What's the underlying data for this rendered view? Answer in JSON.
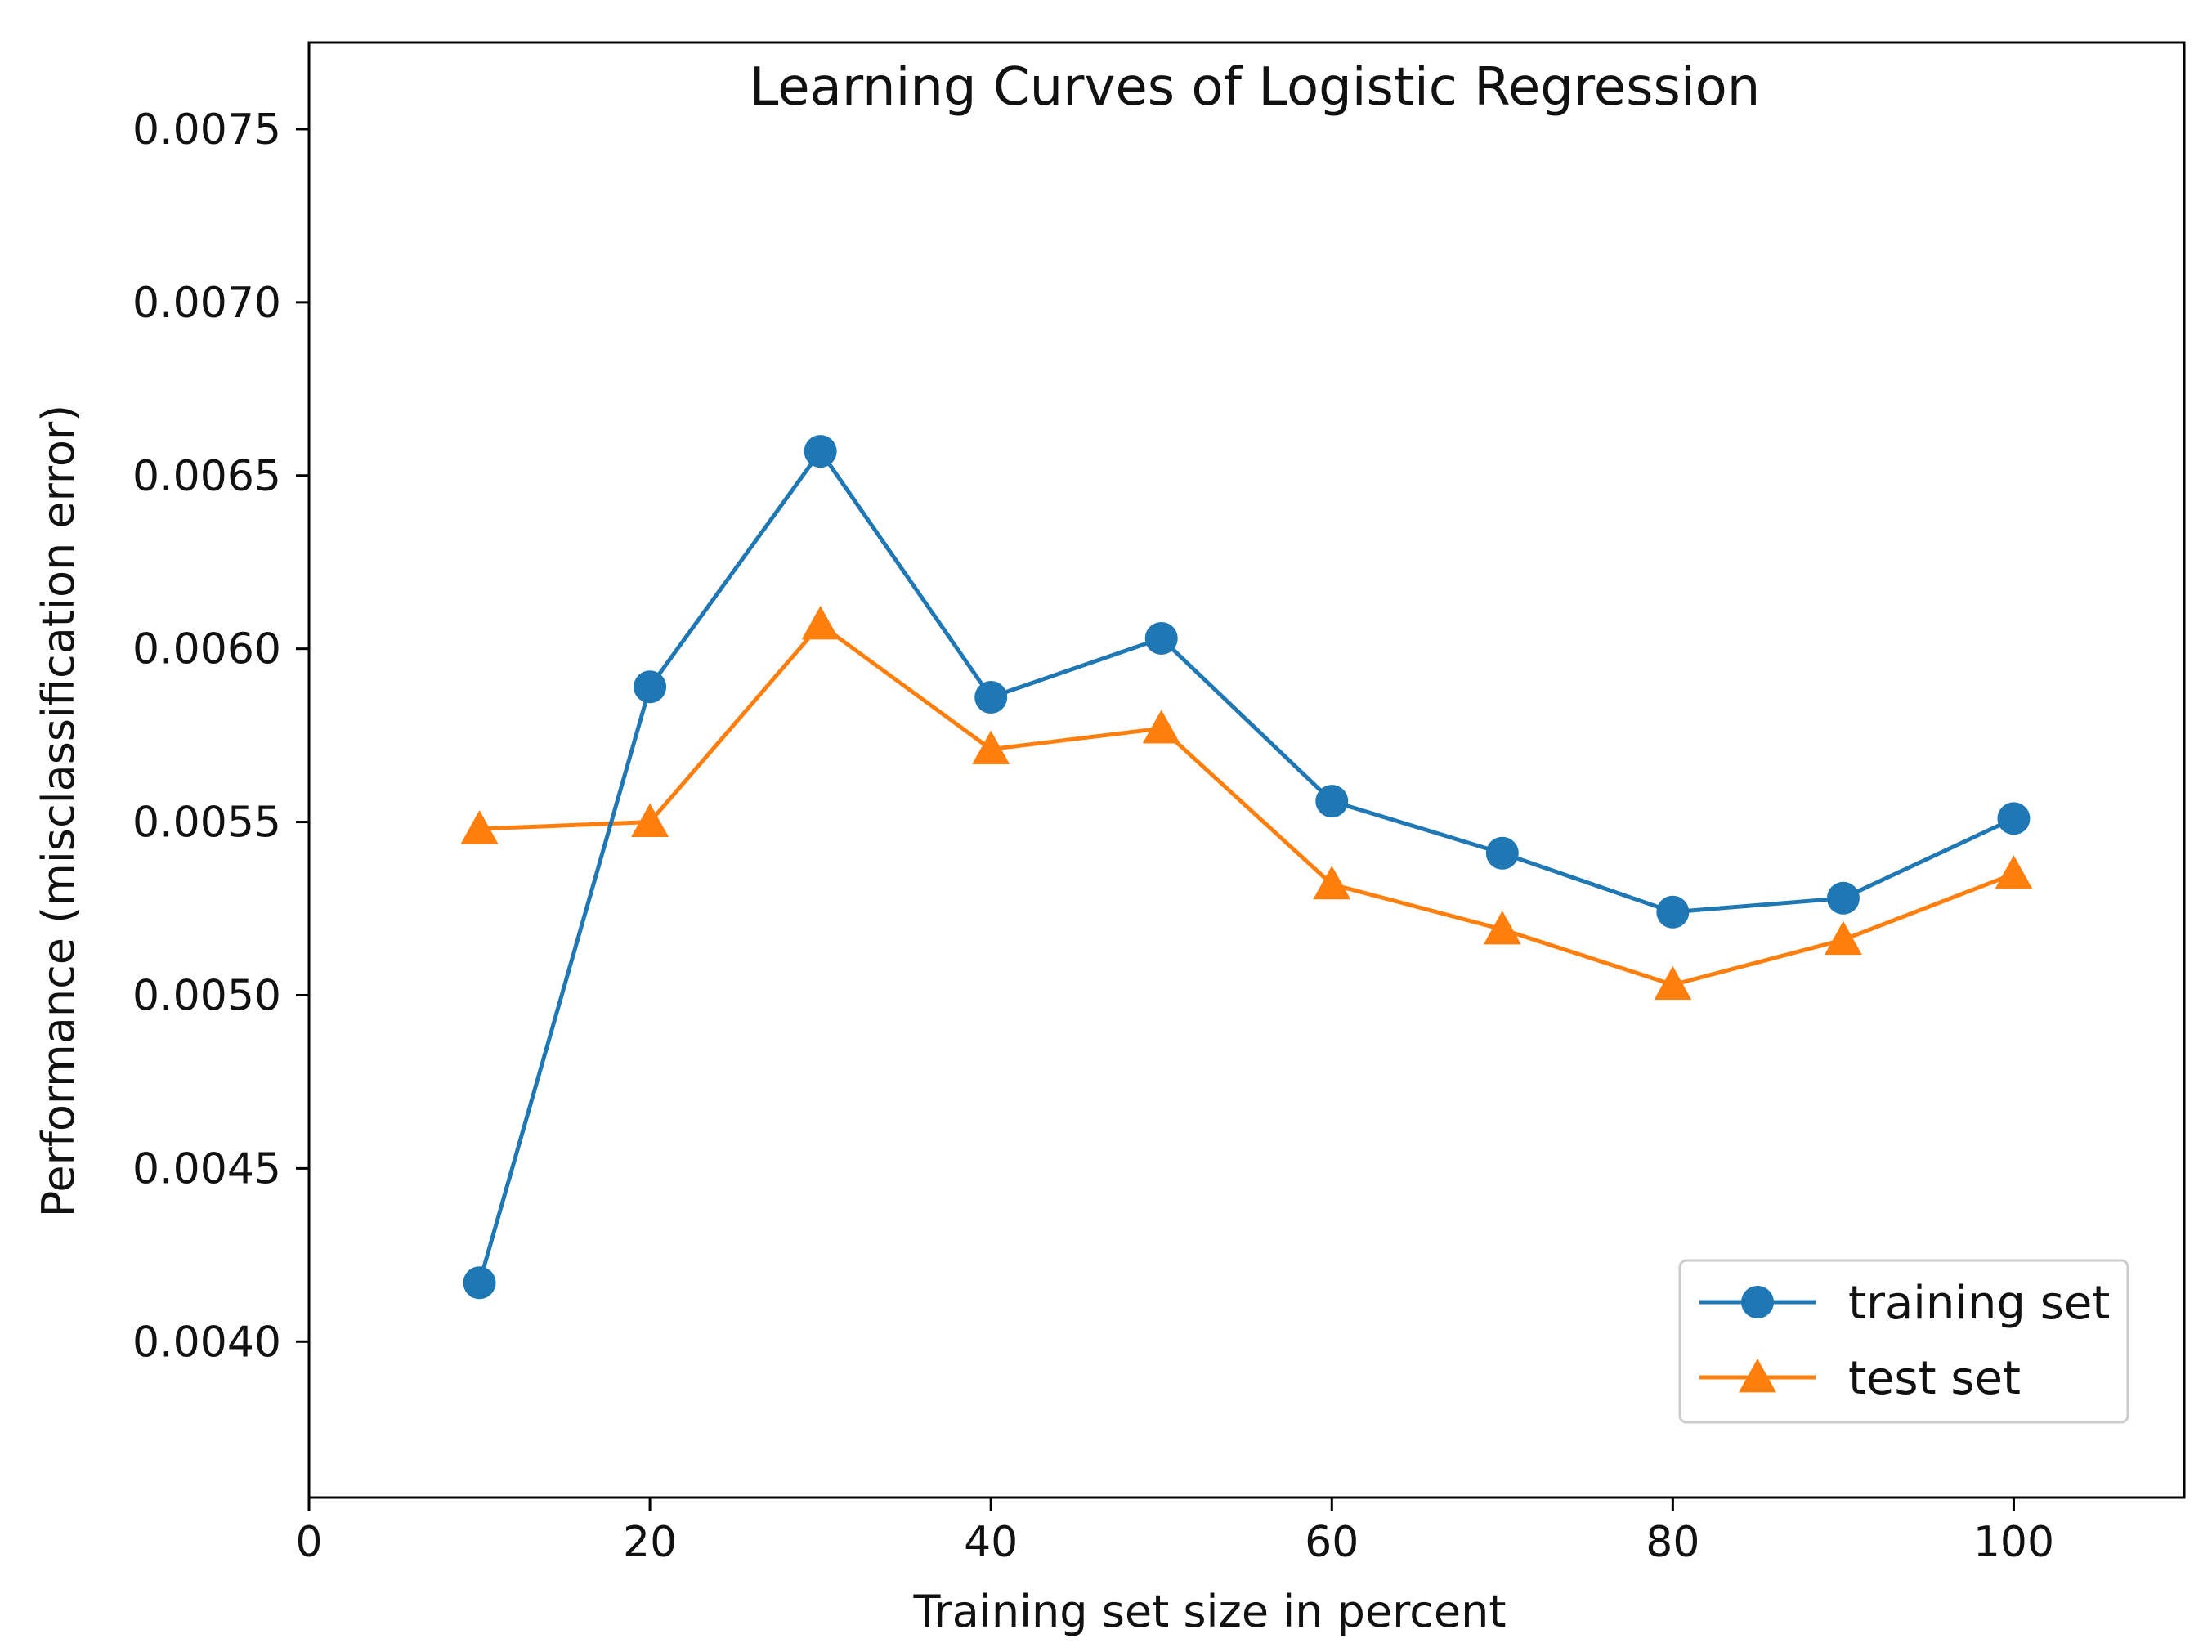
{
  "chart_data": {
    "type": "line",
    "title": "Learning Curves of Logistic Regression",
    "xlabel": "Training set size in percent",
    "ylabel": "Performance (misclassification error)",
    "xlim": [
      0,
      110
    ],
    "ylim": [
      0.00355,
      0.00775
    ],
    "x_ticks": [
      0,
      20,
      40,
      60,
      80,
      100
    ],
    "x_tick_labels": [
      "0",
      "20",
      "40",
      "60",
      "80",
      "100"
    ],
    "y_ticks": [
      0.004,
      0.0045,
      0.005,
      0.0055,
      0.006,
      0.0065,
      0.007,
      0.0075
    ],
    "y_tick_labels": [
      "0.0040",
      "0.0045",
      "0.0050",
      "0.0055",
      "0.0060",
      "0.0065",
      "0.0070",
      "0.0075"
    ],
    "grid": false,
    "legend_position": "lower-right",
    "x": [
      10,
      20,
      30,
      40,
      50,
      60,
      70,
      80,
      90,
      100
    ],
    "series": [
      {
        "name": "training set",
        "marker": "circle",
        "color": "#1f77b4",
        "values": [
          0.00417,
          0.00589,
          0.00657,
          0.00586,
          0.00603,
          0.00556,
          0.00541,
          0.00524,
          0.00528,
          0.00551
        ]
      },
      {
        "name": "test set",
        "marker": "triangle",
        "color": "#ff7f0e",
        "values": [
          0.00548,
          0.0055,
          0.00607,
          0.00571,
          0.00577,
          0.00532,
          0.00519,
          0.00503,
          0.00516,
          0.00535
        ]
      }
    ]
  }
}
